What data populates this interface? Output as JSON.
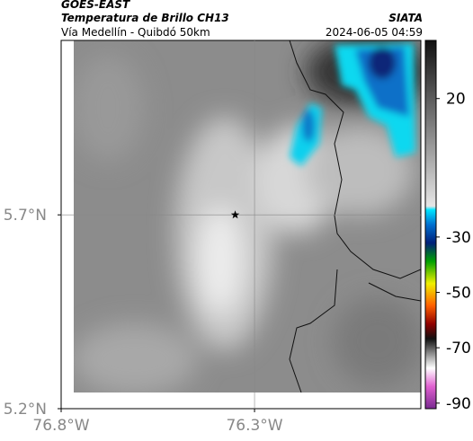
{
  "header": {
    "title": "GOES-EAST",
    "subtitle": "Temperatura de Brillo CH13",
    "region": "Vía Medellín - Quibdó 50km",
    "source": "SIATA",
    "datetime": "2024-06-05 04:59"
  },
  "map": {
    "lonlim": [
      -76.8,
      -75.87
    ],
    "latlim": [
      5.2,
      6.15
    ],
    "lon_ticks": [
      {
        "value": -76.8,
        "label": "76.8°W"
      },
      {
        "value": -76.3,
        "label": "76.3°W"
      }
    ],
    "lat_ticks": [
      {
        "value": 5.7,
        "label": "5.7°N"
      },
      {
        "value": 5.2,
        "label": "5.2°N"
      }
    ],
    "marker": {
      "lon": -76.35,
      "lat": 5.7
    }
  },
  "colorbar": {
    "clim": [
      -92,
      41
    ],
    "ticks": [
      20,
      -30,
      -50,
      -70,
      -90
    ]
  }
}
